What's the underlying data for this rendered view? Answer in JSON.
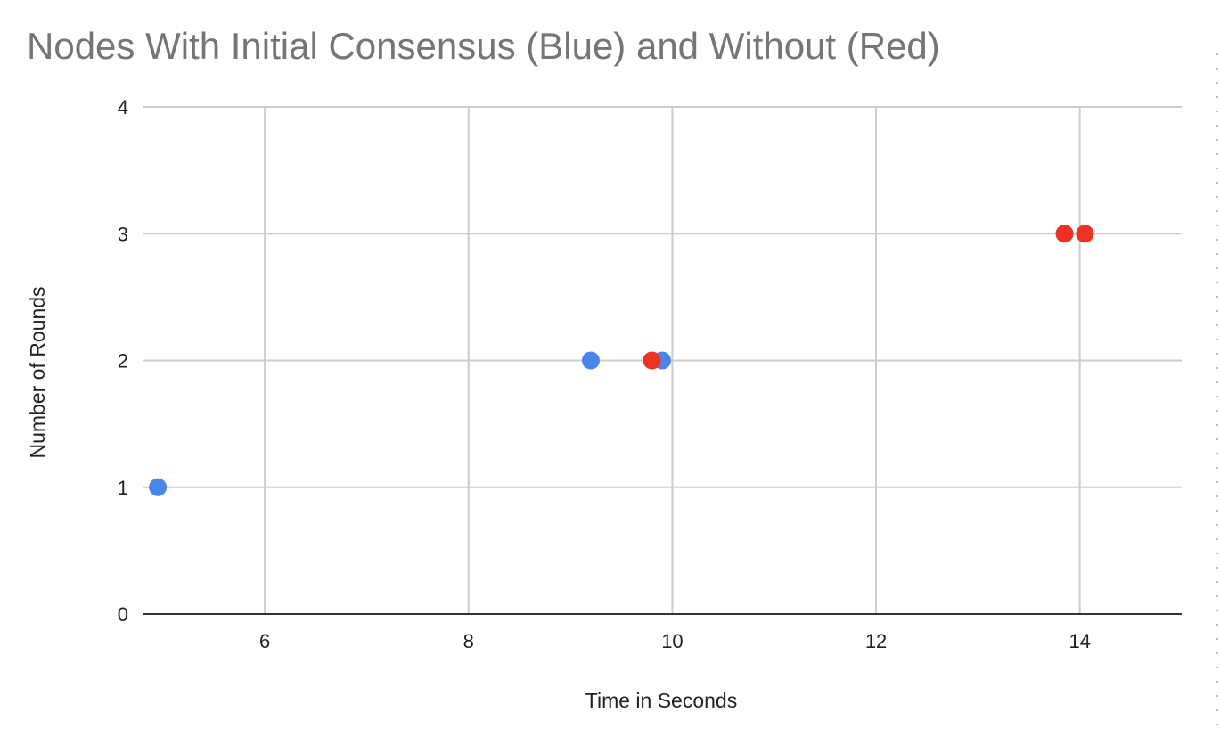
{
  "chart_data": {
    "type": "scatter",
    "title": "Nodes With Initial Consensus (Blue) and Without (Red)",
    "xlabel": "Time in Seconds",
    "ylabel": "Number of Rounds",
    "xlim": [
      4.8,
      15
    ],
    "ylim": [
      0,
      4
    ],
    "x_ticks": [
      6,
      8,
      10,
      12,
      14
    ],
    "y_ticks": [
      0,
      1,
      2,
      3,
      4
    ],
    "grid": true,
    "legend": "none",
    "series": [
      {
        "color": "#4a86e8",
        "points": [
          {
            "x": 4.95,
            "y": 1
          },
          {
            "x": 9.2,
            "y": 2
          },
          {
            "x": 9.9,
            "y": 2
          }
        ]
      },
      {
        "color": "#ea3324",
        "points": [
          {
            "x": 9.8,
            "y": 2
          },
          {
            "x": 13.85,
            "y": 3
          },
          {
            "x": 14.05,
            "y": 3
          }
        ]
      }
    ]
  }
}
